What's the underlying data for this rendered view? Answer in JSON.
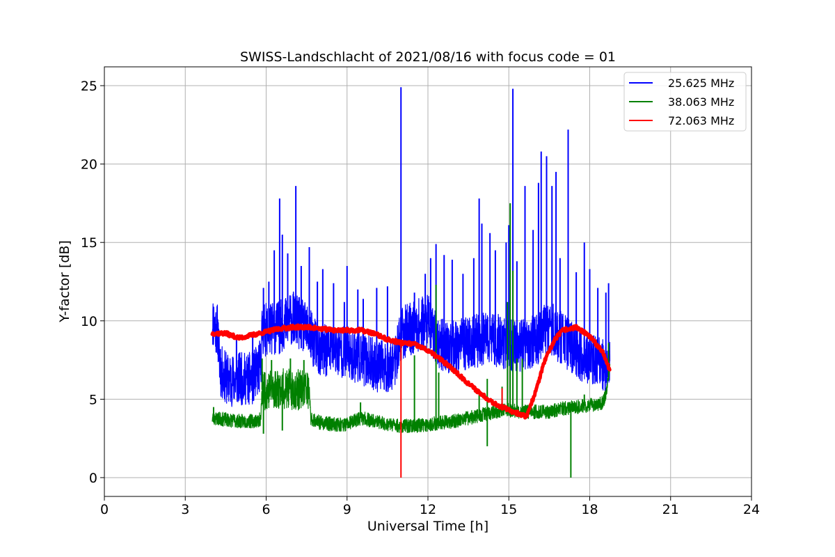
{
  "chart_data": {
    "type": "line",
    "title": "SWISS-Landschlacht of 2021/08/16 with focus code = 01",
    "xlabel": "Universal Time [h]",
    "ylabel": "Y-factor [dB]",
    "xlim": [
      0,
      24
    ],
    "ylim": [
      -1.2,
      26.2
    ],
    "xticks": [
      0,
      3,
      6,
      9,
      12,
      15,
      18,
      21,
      24
    ],
    "yticks": [
      0,
      5,
      10,
      15,
      20,
      25
    ],
    "grid": true,
    "legend_position": "top-right",
    "series": [
      {
        "name": "25.625 MHz",
        "color": "#0000ff",
        "baseline": [
          [
            4.0,
            10.0
          ],
          [
            4.2,
            9.4
          ],
          [
            4.3,
            6.8
          ],
          [
            4.6,
            6.2
          ],
          [
            5.0,
            6.3
          ],
          [
            5.5,
            6.3
          ],
          [
            5.8,
            7.2
          ],
          [
            5.85,
            9.4
          ],
          [
            6.5,
            9.6
          ],
          [
            7.0,
            10.2
          ],
          [
            7.5,
            9.4
          ],
          [
            8.0,
            8.0
          ],
          [
            8.5,
            8.2
          ],
          [
            9.0,
            8.0
          ],
          [
            9.5,
            7.6
          ],
          [
            10.0,
            7.2
          ],
          [
            10.5,
            7.0
          ],
          [
            10.8,
            7.5
          ],
          [
            11.0,
            9.2
          ],
          [
            11.5,
            9.6
          ],
          [
            12.0,
            10.0
          ],
          [
            12.3,
            8.8
          ],
          [
            12.6,
            8.4
          ],
          [
            13.0,
            8.3
          ],
          [
            13.5,
            8.6
          ],
          [
            14.0,
            8.8
          ],
          [
            14.5,
            8.8
          ],
          [
            15.0,
            8.4
          ],
          [
            15.5,
            8.4
          ],
          [
            16.0,
            8.8
          ],
          [
            16.5,
            9.6
          ],
          [
            17.0,
            8.8
          ],
          [
            17.5,
            8.0
          ],
          [
            18.0,
            7.6
          ],
          [
            18.5,
            7.1
          ],
          [
            18.75,
            7.0
          ]
        ],
        "spikes": [
          [
            4.05,
            10.9
          ],
          [
            4.3,
            8.2
          ],
          [
            4.9,
            9.0
          ],
          [
            5.5,
            9.2
          ],
          [
            5.9,
            12.1
          ],
          [
            6.1,
            12.5
          ],
          [
            6.3,
            14.5
          ],
          [
            6.5,
            17.8
          ],
          [
            6.6,
            15.5
          ],
          [
            6.8,
            14.3
          ],
          [
            7.1,
            18.6
          ],
          [
            7.3,
            13.5
          ],
          [
            7.6,
            14.7
          ],
          [
            7.9,
            12.5
          ],
          [
            8.1,
            13.3
          ],
          [
            8.5,
            12.4
          ],
          [
            8.9,
            11.2
          ],
          [
            9.0,
            13.5
          ],
          [
            9.4,
            12.0
          ],
          [
            9.6,
            11.4
          ],
          [
            10.1,
            12.1
          ],
          [
            10.5,
            12.2
          ],
          [
            11.0,
            24.9
          ],
          [
            11.5,
            11.8
          ],
          [
            11.9,
            13.0
          ],
          [
            12.1,
            14.0
          ],
          [
            12.3,
            14.9
          ],
          [
            12.6,
            14.2
          ],
          [
            12.9,
            13.9
          ],
          [
            13.3,
            13.0
          ],
          [
            13.7,
            14.0
          ],
          [
            13.9,
            17.8
          ],
          [
            14.0,
            16.2
          ],
          [
            14.3,
            15.6
          ],
          [
            14.5,
            14.5
          ],
          [
            14.9,
            15.0
          ],
          [
            15.0,
            16.1
          ],
          [
            15.15,
            24.8
          ],
          [
            15.3,
            13.8
          ],
          [
            15.6,
            18.6
          ],
          [
            15.9,
            15.8
          ],
          [
            16.1,
            18.8
          ],
          [
            16.2,
            20.8
          ],
          [
            16.4,
            20.5
          ],
          [
            16.6,
            18.6
          ],
          [
            16.75,
            19.5
          ],
          [
            16.9,
            14.0
          ],
          [
            17.2,
            22.2
          ],
          [
            17.5,
            13.1
          ],
          [
            17.8,
            15.0
          ],
          [
            18.0,
            13.3
          ],
          [
            18.3,
            12.1
          ],
          [
            18.6,
            11.8
          ],
          [
            18.7,
            12.4
          ]
        ]
      },
      {
        "name": "38.063 MHz",
        "color": "#008000",
        "baseline": [
          [
            4.0,
            3.8
          ],
          [
            4.5,
            3.7
          ],
          [
            5.0,
            3.6
          ],
          [
            5.5,
            3.6
          ],
          [
            5.8,
            3.7
          ],
          [
            5.85,
            5.6
          ],
          [
            6.5,
            5.7
          ],
          [
            7.0,
            5.6
          ],
          [
            7.6,
            5.6
          ],
          [
            7.65,
            3.8
          ],
          [
            8.0,
            3.5
          ],
          [
            8.5,
            3.4
          ],
          [
            9.0,
            3.4
          ],
          [
            9.5,
            3.8
          ],
          [
            10.0,
            3.6
          ],
          [
            10.5,
            3.4
          ],
          [
            11.0,
            3.3
          ],
          [
            11.5,
            3.3
          ],
          [
            12.0,
            3.4
          ],
          [
            12.5,
            3.5
          ],
          [
            13.0,
            3.6
          ],
          [
            13.5,
            3.8
          ],
          [
            14.0,
            4.0
          ],
          [
            14.5,
            4.2
          ],
          [
            15.0,
            4.3
          ],
          [
            15.5,
            4.2
          ],
          [
            16.0,
            4.2
          ],
          [
            16.5,
            4.2
          ],
          [
            17.0,
            4.4
          ],
          [
            17.5,
            4.5
          ],
          [
            18.0,
            4.6
          ],
          [
            18.5,
            4.8
          ],
          [
            18.65,
            5.6
          ],
          [
            18.75,
            7.4
          ]
        ],
        "spikes": [
          [
            4.05,
            4.5
          ],
          [
            5.85,
            7.6
          ],
          [
            6.2,
            7.5
          ],
          [
            6.9,
            7.6
          ],
          [
            7.4,
            7.5
          ],
          [
            9.5,
            4.8
          ],
          [
            11.5,
            7.8
          ],
          [
            12.3,
            12.3
          ],
          [
            12.4,
            6.7
          ],
          [
            13.9,
            5.5
          ],
          [
            14.2,
            6.3
          ],
          [
            14.75,
            5.8
          ],
          [
            14.95,
            11.2
          ],
          [
            15.05,
            17.5
          ],
          [
            15.15,
            13.2
          ],
          [
            15.3,
            7.6
          ],
          [
            15.5,
            7.6
          ],
          [
            17.8,
            5.3
          ],
          [
            18.7,
            8.6
          ]
        ],
        "dips": [
          [
            5.9,
            2.8
          ],
          [
            6.6,
            3.0
          ],
          [
            14.2,
            2.0
          ],
          [
            17.3,
            0.0
          ]
        ]
      },
      {
        "name": "72.063 MHz",
        "color": "#ff0000",
        "points": [
          [
            4.0,
            9.2
          ],
          [
            4.5,
            9.2
          ],
          [
            5.0,
            8.9
          ],
          [
            5.5,
            9.1
          ],
          [
            6.0,
            9.3
          ],
          [
            6.5,
            9.5
          ],
          [
            7.0,
            9.6
          ],
          [
            7.5,
            9.6
          ],
          [
            8.0,
            9.5
          ],
          [
            8.5,
            9.4
          ],
          [
            9.0,
            9.4
          ],
          [
            9.5,
            9.4
          ],
          [
            10.0,
            9.2
          ],
          [
            10.5,
            8.8
          ],
          [
            11.0,
            8.6
          ],
          [
            11.5,
            8.5
          ],
          [
            12.0,
            8.1
          ],
          [
            12.5,
            7.5
          ],
          [
            13.0,
            6.8
          ],
          [
            13.5,
            6.0
          ],
          [
            14.0,
            5.3
          ],
          [
            14.5,
            4.7
          ],
          [
            15.0,
            4.3
          ],
          [
            15.5,
            4.0
          ],
          [
            15.65,
            3.9
          ],
          [
            16.0,
            5.5
          ],
          [
            16.3,
            7.3
          ],
          [
            16.7,
            8.8
          ],
          [
            17.0,
            9.4
          ],
          [
            17.5,
            9.6
          ],
          [
            18.0,
            9.0
          ],
          [
            18.5,
            8.0
          ],
          [
            18.75,
            6.8
          ]
        ],
        "spikes": [
          [
            11.0,
            0.0
          ],
          [
            14.75,
            5.7
          ]
        ]
      }
    ]
  }
}
